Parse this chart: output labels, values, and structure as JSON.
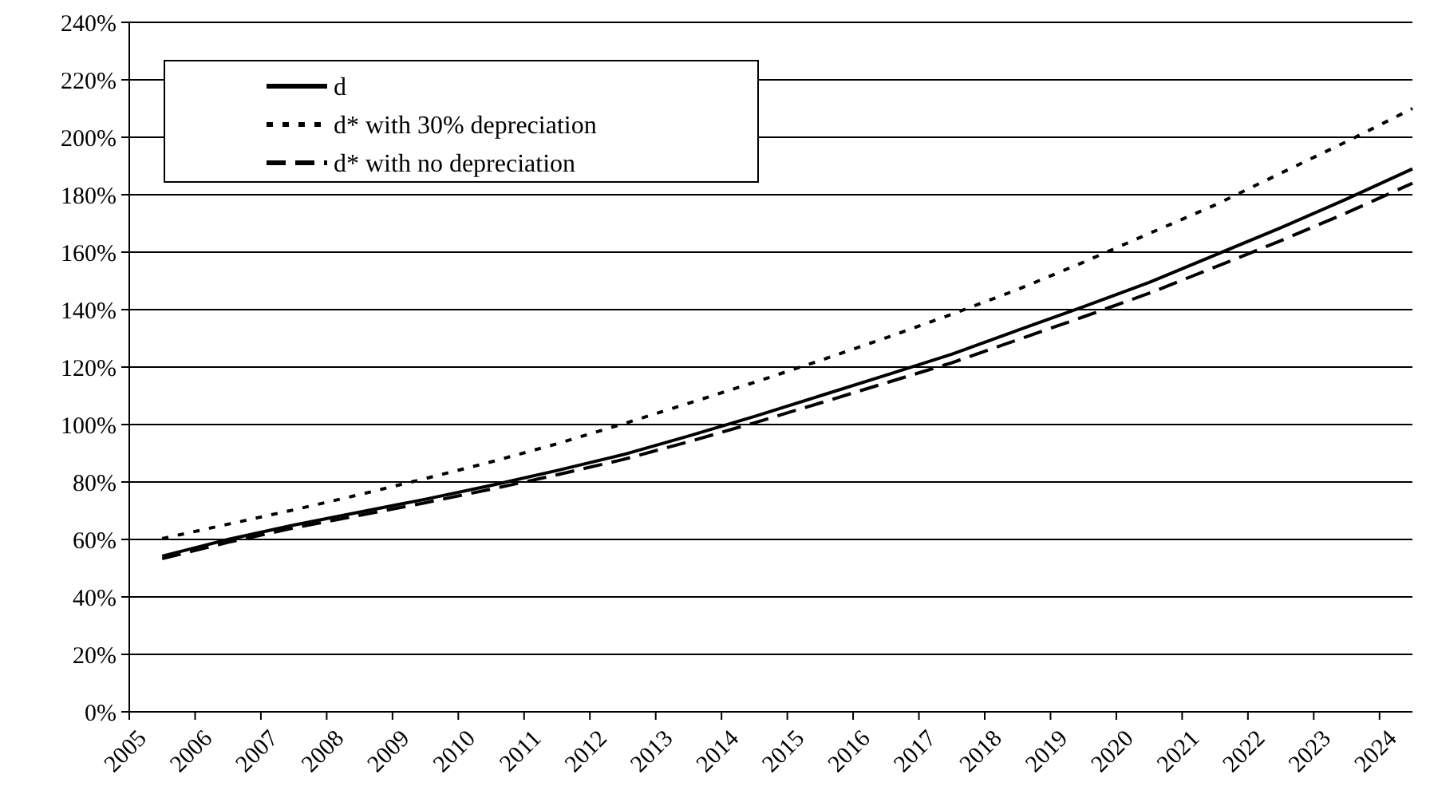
{
  "chart_data": {
    "type": "line",
    "x": [
      2005.5,
      2006.5,
      2007.5,
      2008.5,
      2009.5,
      2010.5,
      2011.5,
      2012.5,
      2013.5,
      2014.5,
      2015.5,
      2016.5,
      2017.5,
      2018.5,
      2019.5,
      2020.5,
      2021.5,
      2022.5,
      2023.5,
      2024.5
    ],
    "series": [
      {
        "name": "d",
        "color": "#000000",
        "line_style": "solid",
        "values": [
          54.2,
          60.0,
          65.0,
          69.5,
          74.0,
          78.8,
          84.0,
          89.5,
          96.0,
          102.8,
          110.0,
          117.2,
          124.5,
          132.8,
          141.0,
          149.5,
          159.0,
          168.5,
          178.5,
          189.0
        ]
      },
      {
        "name": "d* with 30% depreciation",
        "color": "#000000",
        "line_style": "dotted",
        "values": [
          60.3,
          65.3,
          70.3,
          75.6,
          81.2,
          87.0,
          93.3,
          100.2,
          107.4,
          114.7,
          122.3,
          130.2,
          138.4,
          147.0,
          156.5,
          166.5,
          176.4,
          187.5,
          198.5,
          210.0
        ]
      },
      {
        "name": "d* with no depreciation",
        "color": "#000000",
        "line_style": "dashed",
        "values": [
          53.3,
          59.0,
          64.0,
          68.4,
          72.8,
          77.5,
          82.5,
          87.8,
          94.0,
          100.6,
          107.5,
          114.5,
          121.5,
          129.5,
          137.5,
          145.7,
          154.8,
          164.0,
          173.7,
          184.0
        ]
      }
    ],
    "xlim": [
      2005,
      2024.5
    ],
    "xticks": [
      2005,
      2006,
      2007,
      2008,
      2009,
      2010,
      2011,
      2012,
      2013,
      2014,
      2015,
      2016,
      2017,
      2018,
      2019,
      2020,
      2021,
      2022,
      2023,
      2024
    ],
    "ylim": [
      0,
      240
    ],
    "yticks": [
      {
        "value": 0,
        "label": "0%"
      },
      {
        "value": 20,
        "label": "20%"
      },
      {
        "value": 40,
        "label": "40%"
      },
      {
        "value": 60,
        "label": "60%"
      },
      {
        "value": 80,
        "label": "80%"
      },
      {
        "value": 100,
        "label": "100%"
      },
      {
        "value": 120,
        "label": "120%"
      },
      {
        "value": 140,
        "label": "140%"
      },
      {
        "value": 160,
        "label": "160%"
      },
      {
        "value": 180,
        "label": "180%"
      },
      {
        "value": 200,
        "label": "200%"
      },
      {
        "value": 220,
        "label": "220%"
      },
      {
        "value": 240,
        "label": "240%"
      }
    ],
    "grid": "y",
    "legend": "top left",
    "marker": "none"
  }
}
